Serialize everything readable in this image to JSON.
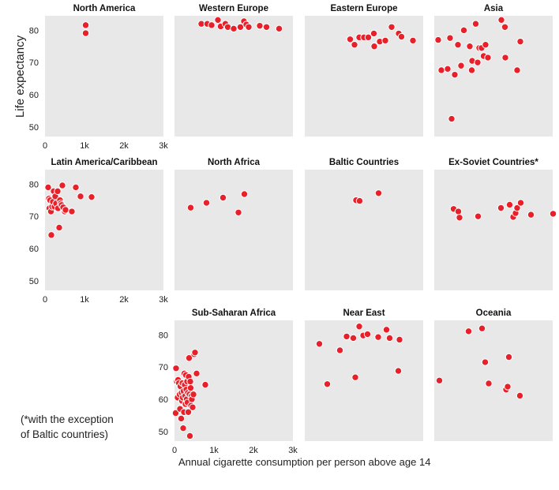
{
  "chart_data": {
    "type": "scatter",
    "xlabel": "Annual cigarette consumption per person above age 14",
    "ylabel": "Life expectancy",
    "xlim": [
      0,
      3000
    ],
    "ylim": [
      47,
      84.5
    ],
    "x_ticks": [
      0,
      1000,
      2000,
      3000
    ],
    "x_tick_labels": [
      "0",
      "1k",
      "2k",
      "3k"
    ],
    "y_ticks": [
      50,
      60,
      70,
      80
    ],
    "y_tick_labels": [
      "50",
      "60",
      "70",
      "80"
    ],
    "point_color": "#e8202a",
    "panel_bg": "#e8e8e8",
    "footnote_line1": "(*with the exception",
    "footnote_line2": "of Baltic countries)",
    "panels": [
      {
        "title": "North America",
        "points": [
          [
            1030,
            81.6
          ],
          [
            1030,
            79.1
          ]
        ]
      },
      {
        "title": "Western Europe",
        "points": [
          [
            680,
            82.0
          ],
          [
            830,
            82.0
          ],
          [
            940,
            81.6
          ],
          [
            1100,
            83.2
          ],
          [
            1170,
            81.2
          ],
          [
            1290,
            82.0
          ],
          [
            1350,
            81.0
          ],
          [
            1500,
            80.5
          ],
          [
            1670,
            81.0
          ],
          [
            1760,
            82.8
          ],
          [
            1820,
            81.8
          ],
          [
            1880,
            81.0
          ],
          [
            2160,
            81.4
          ],
          [
            2330,
            81.0
          ],
          [
            2650,
            80.5
          ]
        ]
      },
      {
        "title": "Eastern Europe",
        "points": [
          [
            1150,
            77.2
          ],
          [
            1260,
            75.5
          ],
          [
            1380,
            77.8
          ],
          [
            1500,
            77.8
          ],
          [
            1610,
            77.8
          ],
          [
            1750,
            79.0
          ],
          [
            1760,
            75.0
          ],
          [
            1900,
            76.5
          ],
          [
            2040,
            76.8
          ],
          [
            2200,
            81.0
          ],
          [
            2380,
            79.0
          ],
          [
            2450,
            78.0
          ],
          [
            2740,
            76.8
          ]
        ]
      },
      {
        "title": "Asia",
        "points": [
          [
            100,
            77.0
          ],
          [
            180,
            67.6
          ],
          [
            340,
            68.0
          ],
          [
            400,
            77.6
          ],
          [
            440,
            52.5
          ],
          [
            520,
            66.2
          ],
          [
            600,
            75.5
          ],
          [
            680,
            69.0
          ],
          [
            750,
            80.0
          ],
          [
            900,
            75.0
          ],
          [
            950,
            67.6
          ],
          [
            960,
            70.5
          ],
          [
            1050,
            82.0
          ],
          [
            1100,
            70.0
          ],
          [
            1140,
            74.5
          ],
          [
            1200,
            74.5
          ],
          [
            1250,
            72.0
          ],
          [
            1300,
            75.5
          ],
          [
            1360,
            71.5
          ],
          [
            1700,
            83.2
          ],
          [
            1790,
            81.0
          ],
          [
            1800,
            71.5
          ],
          [
            2100,
            67.6
          ],
          [
            2180,
            76.5
          ]
        ]
      },
      {
        "title": "Latin America/Caribbean",
        "points": [
          [
            80,
            79.0
          ],
          [
            100,
            75.5
          ],
          [
            110,
            72.5
          ],
          [
            130,
            75.0
          ],
          [
            150,
            71.5
          ],
          [
            160,
            64.2
          ],
          [
            180,
            73.0
          ],
          [
            200,
            74.5
          ],
          [
            220,
            77.8
          ],
          [
            240,
            73.0
          ],
          [
            260,
            76.2
          ],
          [
            280,
            74.0
          ],
          [
            320,
            77.8
          ],
          [
            330,
            72.5
          ],
          [
            360,
            66.5
          ],
          [
            380,
            75.0
          ],
          [
            400,
            74.0
          ],
          [
            420,
            73.5
          ],
          [
            440,
            79.6
          ],
          [
            460,
            72.8
          ],
          [
            500,
            71.5
          ],
          [
            520,
            72.0
          ],
          [
            680,
            71.5
          ],
          [
            780,
            79.0
          ],
          [
            900,
            76.2
          ],
          [
            1180,
            76.0
          ]
        ]
      },
      {
        "title": "North Africa",
        "points": [
          [
            410,
            72.7
          ],
          [
            810,
            74.2
          ],
          [
            1230,
            75.8
          ],
          [
            1620,
            71.2
          ],
          [
            1770,
            76.9
          ]
        ]
      },
      {
        "title": "Baltic Countries",
        "points": [
          [
            1300,
            75.0
          ],
          [
            1390,
            74.8
          ],
          [
            1870,
            77.2
          ]
        ]
      },
      {
        "title": "Ex-Soviet Countries*",
        "points": [
          [
            490,
            72.3
          ],
          [
            610,
            71.5
          ],
          [
            640,
            69.6
          ],
          [
            1110,
            70.0
          ],
          [
            1690,
            72.6
          ],
          [
            1910,
            73.6
          ],
          [
            2000,
            69.8
          ],
          [
            2060,
            71.0
          ],
          [
            2100,
            72.6
          ],
          [
            2190,
            74.2
          ],
          [
            2450,
            70.5
          ],
          [
            3010,
            70.8
          ]
        ]
      },
      {
        "title": "Sub-Saharan Africa",
        "points": [
          [
            30,
            55.7
          ],
          [
            40,
            69.6
          ],
          [
            60,
            65.5
          ],
          [
            80,
            60.5
          ],
          [
            90,
            66.0
          ],
          [
            110,
            65.0
          ],
          [
            130,
            61.5
          ],
          [
            140,
            57.0
          ],
          [
            150,
            64.0
          ],
          [
            170,
            54.0
          ],
          [
            180,
            62.0
          ],
          [
            190,
            59.5
          ],
          [
            200,
            65.0
          ],
          [
            210,
            60.5
          ],
          [
            220,
            51.0
          ],
          [
            230,
            62.5
          ],
          [
            240,
            56.0
          ],
          [
            250,
            68.0
          ],
          [
            260,
            64.5
          ],
          [
            270,
            61.0
          ],
          [
            280,
            58.5
          ],
          [
            290,
            67.5
          ],
          [
            300,
            63.0
          ],
          [
            310,
            60.0
          ],
          [
            320,
            65.5
          ],
          [
            330,
            59.0
          ],
          [
            340,
            62.0
          ],
          [
            350,
            56.0
          ],
          [
            360,
            67.0
          ],
          [
            370,
            72.8
          ],
          [
            380,
            61.5
          ],
          [
            390,
            48.6
          ],
          [
            400,
            65.5
          ],
          [
            410,
            63.5
          ],
          [
            420,
            58.0
          ],
          [
            430,
            61.0
          ],
          [
            440,
            60.0
          ],
          [
            460,
            57.5
          ],
          [
            480,
            61.5
          ],
          [
            500,
            74.0
          ],
          [
            520,
            74.5
          ],
          [
            560,
            68.0
          ],
          [
            780,
            64.5
          ]
        ]
      },
      {
        "title": "Near East",
        "points": [
          [
            370,
            77.2
          ],
          [
            570,
            64.7
          ],
          [
            890,
            75.2
          ],
          [
            1060,
            79.5
          ],
          [
            1230,
            79.0
          ],
          [
            1280,
            66.8
          ],
          [
            1380,
            82.6
          ],
          [
            1480,
            79.8
          ],
          [
            1590,
            80.2
          ],
          [
            1860,
            79.3
          ],
          [
            2070,
            81.6
          ],
          [
            2150,
            79.0
          ],
          [
            2370,
            68.8
          ],
          [
            2400,
            78.5
          ]
        ]
      },
      {
        "title": "Oceania",
        "points": [
          [
            130,
            65.8
          ],
          [
            870,
            81.1
          ],
          [
            1210,
            82.0
          ],
          [
            1290,
            71.5
          ],
          [
            1380,
            64.9
          ],
          [
            1820,
            63.0
          ],
          [
            1860,
            63.9
          ],
          [
            1890,
            73.1
          ],
          [
            2170,
            61.1
          ]
        ]
      }
    ]
  }
}
